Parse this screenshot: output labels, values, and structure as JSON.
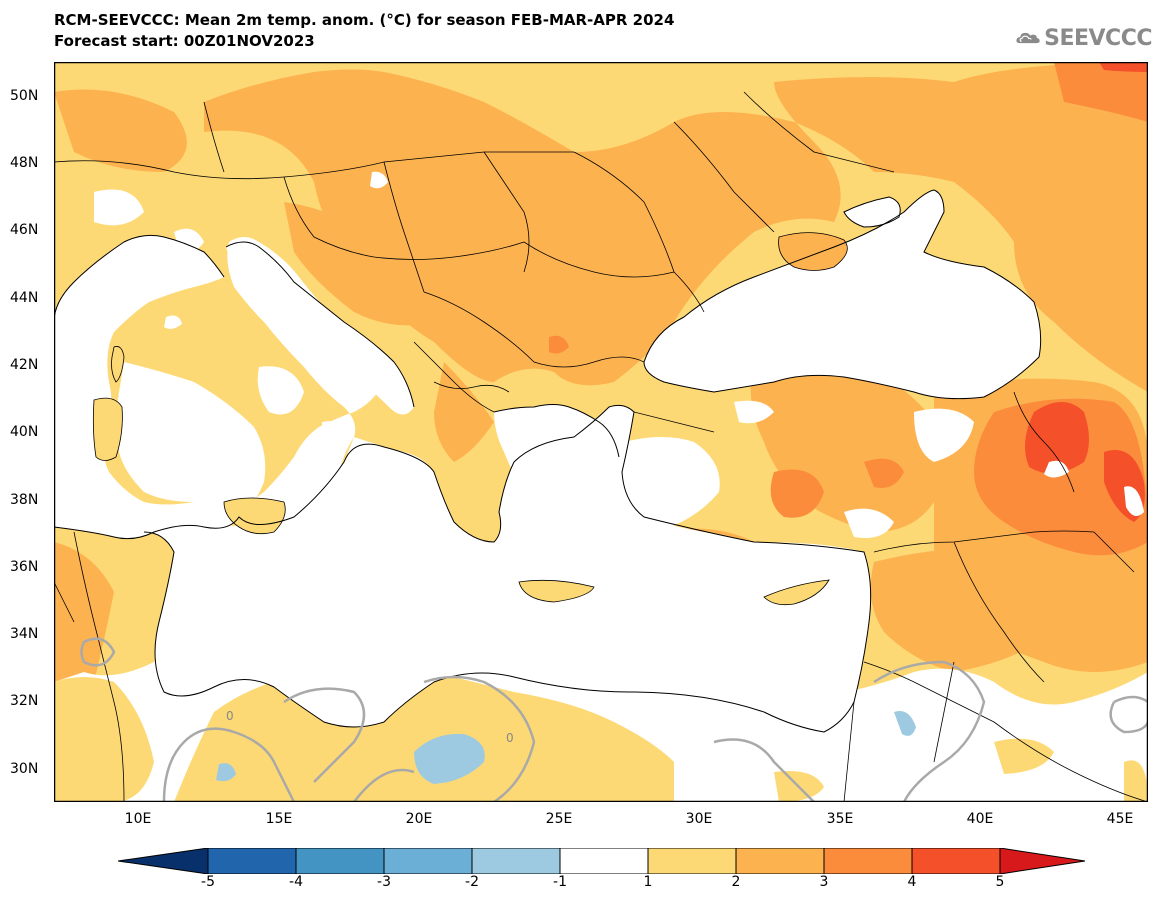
{
  "header": {
    "title_line1": "RCM-SEEVCCC: Mean 2m temp. anom. (°C) for season FEB-MAR-APR 2024",
    "title_line2": "Forecast start: 00Z01NOV2023"
  },
  "logo": {
    "text": "SEEVCCC",
    "icon": "cloud-icon"
  },
  "map": {
    "lat_labels": [
      "50N",
      "48N",
      "46N",
      "44N",
      "42N",
      "40N",
      "38N",
      "36N",
      "34N",
      "32N",
      "30N"
    ],
    "lon_labels": [
      "10E",
      "15E",
      "20E",
      "25E",
      "30E",
      "35E",
      "40E",
      "45E"
    ],
    "contour_label": "0"
  },
  "colorbar": {
    "ticks": [
      "-5",
      "-4",
      "-3",
      "-2",
      "-1",
      "1",
      "2",
      "3",
      "4",
      "5"
    ],
    "colors": [
      "#08306b",
      "#2166ac",
      "#4393c3",
      "#6baed6",
      "#9ecae1",
      "#ffffff",
      "#fdd975",
      "#fdb250",
      "#fb8c3c",
      "#f4502a",
      "#d7191c"
    ]
  }
}
